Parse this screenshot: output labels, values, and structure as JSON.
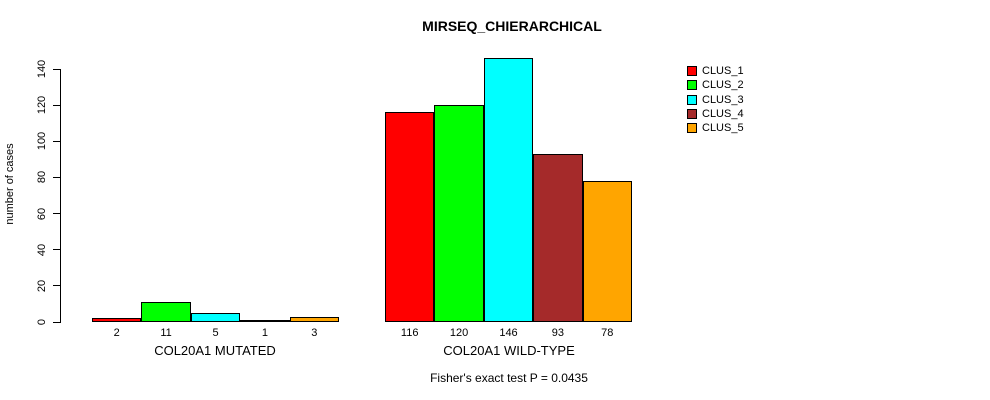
{
  "chart_data": {
    "type": "bar",
    "title": "MIRSEQ_CHIERARCHICAL",
    "ylabel": "number of cases",
    "xlabel": "",
    "annotation": "Fisher's exact test P = 0.0435",
    "yticks": [
      0,
      20,
      40,
      60,
      80,
      100,
      120,
      140
    ],
    "ylim": [
      0,
      150
    ],
    "grid": false,
    "legend_position": "top-right",
    "bar_value_labels": true,
    "categories": [
      "COL20A1 MUTATED",
      "COL20A1 WILD-TYPE"
    ],
    "series": [
      {
        "name": "CLUS_1",
        "color": "#FF0000",
        "values": [
          2,
          116
        ]
      },
      {
        "name": "CLUS_2",
        "color": "#00FF00",
        "values": [
          11,
          120
        ]
      },
      {
        "name": "CLUS_3",
        "color": "#00FFFF",
        "values": [
          5,
          146
        ]
      },
      {
        "name": "CLUS_4",
        "color": "#A52A2A",
        "values": [
          1,
          93
        ]
      },
      {
        "name": "CLUS_5",
        "color": "#FFA500",
        "values": [
          3,
          78
        ]
      }
    ]
  }
}
